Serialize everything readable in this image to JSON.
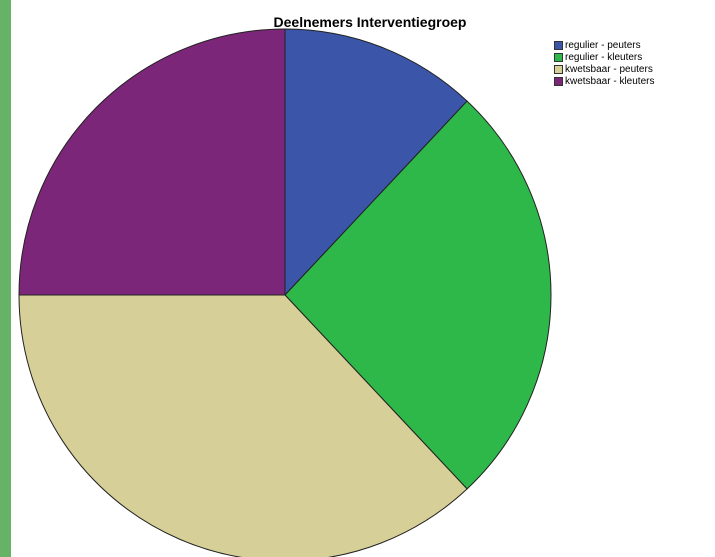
{
  "page": {
    "strip_color": "#66b266"
  },
  "chart_data": {
    "type": "pie",
    "title": "Deelnemers Interventiegroep",
    "legend_position": "top-right",
    "slices": [
      {
        "label": "regulier - peuters",
        "value": 12,
        "color": "#3b55a8"
      },
      {
        "label": "regulier - kleuters",
        "value": 26,
        "color": "#2fb84a"
      },
      {
        "label": "kwetsbaar - peuters",
        "value": 37,
        "color": "#d6cf97"
      },
      {
        "label": "kwetsbaar - kleuters",
        "value": 25,
        "color": "#7b2678"
      }
    ]
  }
}
